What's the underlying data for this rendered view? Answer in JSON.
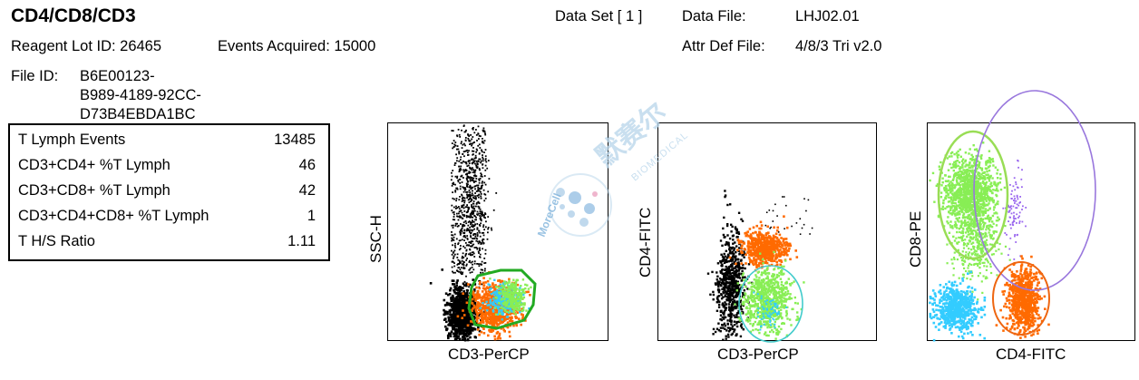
{
  "header": {
    "title": "CD4/CD8/CD3",
    "data_set": "Data Set [ 1 ]",
    "data_file_label": "Data File:",
    "data_file_value": "LHJ02.01",
    "reagent_lot": "Reagent Lot ID:  26465",
    "events_acquired": "Events Acquired:  15000",
    "attr_def_label": "Attr Def File:",
    "attr_def_value": "4/8/3 Tri v2.0",
    "file_id_label": "File ID:",
    "file_id_lines": [
      "B6E00123-",
      "B989-4189-92CC-",
      "D73B4EBDA1BC"
    ]
  },
  "stats": [
    {
      "label": "T Lymph Events",
      "value": "13485"
    },
    {
      "label": "CD3+CD4+ %T Lymph",
      "value": "46"
    },
    {
      "label": "CD3+CD8+ %T Lymph",
      "value": "42"
    },
    {
      "label": "CD3+CD4+CD8+ %T Lymph",
      "value": "1"
    },
    {
      "label": "T H/S Ratio",
      "value": "1.11"
    }
  ],
  "watermark": {
    "brand": "MoreCell",
    "cn": "默赛尔",
    "sub": "BIOMEDICAL"
  },
  "chart_data": [
    {
      "type": "scatter",
      "xlabel": "CD3-PerCP",
      "ylabel": "SSC-H",
      "gate_color": "#22aa22"
    },
    {
      "type": "scatter",
      "xlabel": "CD3-PerCP",
      "ylabel": "CD4-FITC",
      "gate_color": "#44cccc"
    },
    {
      "type": "scatter",
      "xlabel": "CD4-FITC",
      "ylabel": "CD8-PE",
      "gate_colors": [
        "#99dd55",
        "#9977dd",
        "#ee6611"
      ]
    }
  ],
  "colors": {
    "black": "#000000",
    "orange": "#ff6a00",
    "cyan": "#33ccff",
    "green": "#88ee55",
    "purple": "#9966ee"
  }
}
